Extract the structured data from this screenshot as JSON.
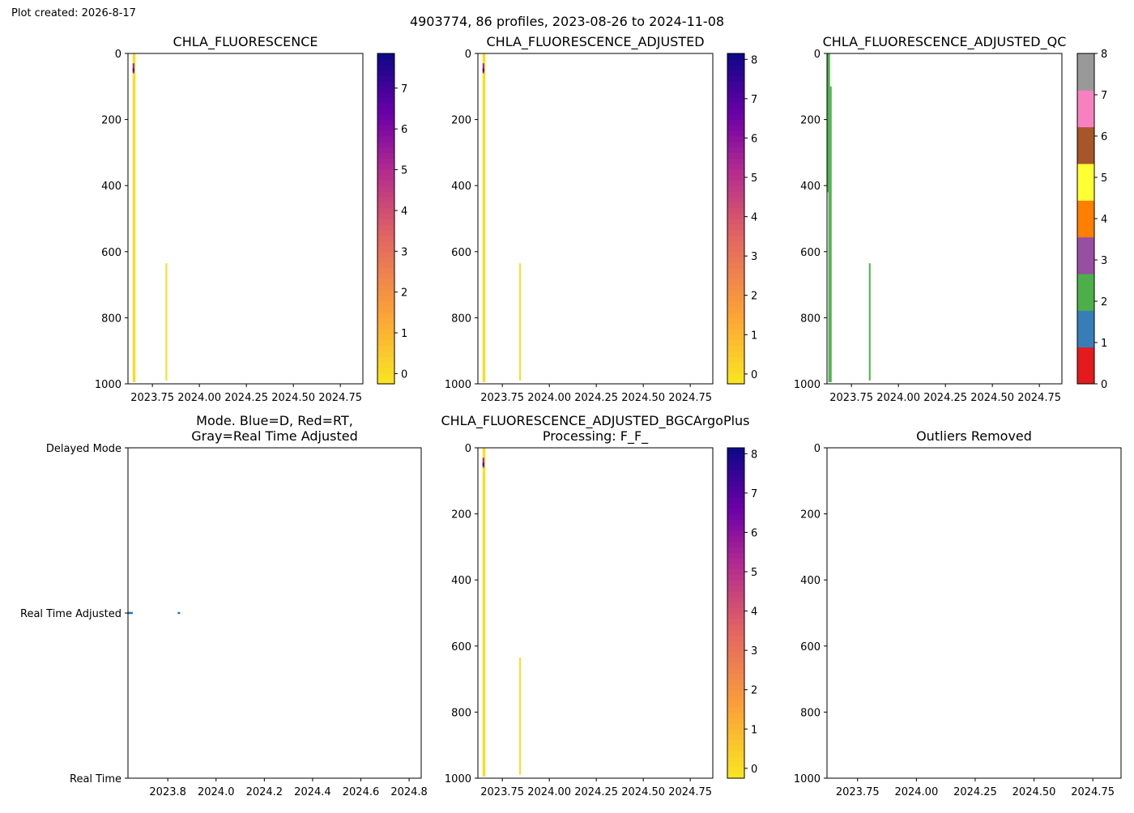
{
  "figure": {
    "created": "Plot created: 2026-8-17",
    "suptitle": "4903774, 86 profiles, 2023-08-26 to 2024-11-08"
  },
  "colors": {
    "colormap_low": "#f9e721",
    "colormap_mid1": "#fca636",
    "colormap_mid2": "#e16462",
    "colormap_mid3": "#b12a90",
    "colormap_mid4": "#6a00a8",
    "colormap_high": "#0d0887",
    "mode_marker": "#1f77b4",
    "qc_green": "#4daf4a"
  },
  "chart_data": [
    {
      "id": "chla",
      "type": "heatmap",
      "title": "CHLA_FLUORESCENCE",
      "xlim": [
        2023.62,
        2024.87
      ],
      "ylim": [
        1000,
        0
      ],
      "xticks": [
        "2023.75",
        "2024.00",
        "2024.25",
        "2024.50",
        "2024.75"
      ],
      "xtick_values": [
        2023.75,
        2024.0,
        2024.25,
        2024.5,
        2024.75
      ],
      "yticks": [
        "0",
        "200",
        "400",
        "600",
        "800",
        "1000"
      ],
      "ytick_values": [
        0,
        200,
        400,
        600,
        800,
        1000
      ],
      "colorbar": {
        "range": [
          -0.25,
          7.85
        ],
        "ticks": [
          "0",
          "1",
          "2",
          "3",
          "4",
          "5",
          "6",
          "7"
        ],
        "tick_values": [
          0,
          1,
          2,
          3,
          4,
          5,
          6,
          7
        ]
      },
      "profiles": [
        {
          "x_start": 2023.645,
          "x_end": 2023.66,
          "depth_top": 0,
          "depth_bottom": 995,
          "value": 0.0
        },
        {
          "x_start": 2023.645,
          "x_end": 2023.652,
          "depth_top": 30,
          "depth_bottom": 60,
          "value": 5.5
        },
        {
          "x_start": 2023.645,
          "x_end": 2023.652,
          "depth_top": 45,
          "depth_bottom": 55,
          "value": 7.0
        },
        {
          "x_start": 2023.82,
          "x_end": 2023.827,
          "depth_top": 635,
          "depth_bottom": 990,
          "value": 0.0
        }
      ]
    },
    {
      "id": "chla_adj",
      "type": "heatmap",
      "title": "CHLA_FLUORESCENCE_ADJUSTED",
      "xlim": [
        2023.62,
        2024.87
      ],
      "ylim": [
        1000,
        0
      ],
      "xticks": [
        "2023.75",
        "2024.00",
        "2024.25",
        "2024.50",
        "2024.75"
      ],
      "xtick_values": [
        2023.75,
        2024.0,
        2024.25,
        2024.5,
        2024.75
      ],
      "yticks": [
        "0",
        "200",
        "400",
        "600",
        "800",
        "1000"
      ],
      "ytick_values": [
        0,
        200,
        400,
        600,
        800,
        1000
      ],
      "colorbar": {
        "range": [
          -0.25,
          8.15
        ],
        "ticks": [
          "0",
          "1",
          "2",
          "3",
          "4",
          "5",
          "6",
          "7",
          "8"
        ],
        "tick_values": [
          0,
          1,
          2,
          3,
          4,
          5,
          6,
          7,
          8
        ]
      },
      "profiles": [
        {
          "x_start": 2023.645,
          "x_end": 2023.66,
          "depth_top": 0,
          "depth_bottom": 995,
          "value": 0.0
        },
        {
          "x_start": 2023.645,
          "x_end": 2023.652,
          "depth_top": 30,
          "depth_bottom": 60,
          "value": 5.5
        },
        {
          "x_start": 2023.645,
          "x_end": 2023.652,
          "depth_top": 45,
          "depth_bottom": 55,
          "value": 7.5
        },
        {
          "x_start": 2023.84,
          "x_end": 2023.847,
          "depth_top": 635,
          "depth_bottom": 990,
          "value": 0.0
        }
      ]
    },
    {
      "id": "chla_qc",
      "type": "heatmap",
      "title": "CHLA_FLUORESCENCE_ADJUSTED_QC",
      "xlim": [
        2023.62,
        2024.87
      ],
      "ylim": [
        1000,
        0
      ],
      "xticks": [
        "2023.75",
        "2024.00",
        "2024.25",
        "2024.50",
        "2024.75"
      ],
      "xtick_values": [
        2023.75,
        2024.0,
        2024.25,
        2024.5,
        2024.75
      ],
      "yticks": [
        "0",
        "200",
        "400",
        "600",
        "800",
        "1000"
      ],
      "ytick_values": [
        0,
        200,
        400,
        600,
        800,
        1000
      ],
      "colorbar": {
        "range": [
          0,
          8
        ],
        "ticks": [
          "0",
          "1",
          "2",
          "3",
          "4",
          "5",
          "6",
          "7",
          "8"
        ],
        "tick_values": [
          0,
          1,
          2,
          3,
          4,
          5,
          6,
          7,
          8
        ],
        "categories": [
          "#e41a1c",
          "#377eb8",
          "#4daf4a",
          "#984ea3",
          "#ff7f00",
          "#ffff33",
          "#a65628",
          "#f781bf",
          "#999999"
        ]
      },
      "profiles": [
        {
          "x_start": 2023.62,
          "x_end": 2023.628,
          "depth_top": 0,
          "depth_bottom": 420,
          "value": 2
        },
        {
          "x_start": 2023.627,
          "x_end": 2023.636,
          "depth_top": 0,
          "depth_bottom": 995,
          "value": 2
        },
        {
          "x_start": 2023.636,
          "x_end": 2023.64,
          "depth_top": 100,
          "depth_bottom": 995,
          "value": 2
        },
        {
          "x_start": 2023.843,
          "x_end": 2023.85,
          "depth_top": 635,
          "depth_bottom": 990,
          "value": 2
        }
      ]
    },
    {
      "id": "mode",
      "type": "scatter",
      "title": "Mode. Blue=D, Red=RT,\nGray=Real Time Adjusted",
      "xlim": [
        2023.635,
        2024.85
      ],
      "xticks": [
        "2023.8",
        "2024.0",
        "2024.2",
        "2024.4",
        "2024.6",
        "2024.8"
      ],
      "xtick_values": [
        2023.8,
        2024.0,
        2024.2,
        2024.4,
        2024.6,
        2024.8
      ],
      "yticks": [
        "Delayed Mode",
        "Real Time Adjusted",
        "Real Time"
      ],
      "ytick_values": [
        2,
        1,
        0
      ],
      "ylim": [
        0,
        2
      ],
      "points": [
        {
          "x": 2023.638,
          "y": 1
        },
        {
          "x": 2023.644,
          "y": 1
        },
        {
          "x": 2023.65,
          "y": 1
        },
        {
          "x": 2023.846,
          "y": 1
        }
      ]
    },
    {
      "id": "chla_bgc",
      "type": "heatmap",
      "title": "CHLA_FLUORESCENCE_ADJUSTED_BGCArgoPlus\nProcessing: F_F_",
      "xlim": [
        2023.62,
        2024.87
      ],
      "ylim": [
        1000,
        0
      ],
      "xticks": [
        "2023.75",
        "2024.00",
        "2024.25",
        "2024.50",
        "2024.75"
      ],
      "xtick_values": [
        2023.75,
        2024.0,
        2024.25,
        2024.5,
        2024.75
      ],
      "yticks": [
        "0",
        "200",
        "400",
        "600",
        "800",
        "1000"
      ],
      "ytick_values": [
        0,
        200,
        400,
        600,
        800,
        1000
      ],
      "colorbar": {
        "range": [
          -0.25,
          8.15
        ],
        "ticks": [
          "0",
          "1",
          "2",
          "3",
          "4",
          "5",
          "6",
          "7",
          "8"
        ],
        "tick_values": [
          0,
          1,
          2,
          3,
          4,
          5,
          6,
          7,
          8
        ]
      },
      "profiles": [
        {
          "x_start": 2023.645,
          "x_end": 2023.66,
          "depth_top": 0,
          "depth_bottom": 995,
          "value": 0.0
        },
        {
          "x_start": 2023.645,
          "x_end": 2023.652,
          "depth_top": 30,
          "depth_bottom": 60,
          "value": 5.5
        },
        {
          "x_start": 2023.645,
          "x_end": 2023.652,
          "depth_top": 45,
          "depth_bottom": 55,
          "value": 7.5
        },
        {
          "x_start": 2023.84,
          "x_end": 2023.847,
          "depth_top": 635,
          "depth_bottom": 990,
          "value": 0.0
        }
      ]
    },
    {
      "id": "outliers",
      "type": "heatmap",
      "title": "Outliers Removed",
      "xlim": [
        2023.62,
        2024.87
      ],
      "ylim": [
        1000,
        0
      ],
      "xticks": [
        "2023.75",
        "2024.00",
        "2024.25",
        "2024.50",
        "2024.75"
      ],
      "xtick_values": [
        2023.75,
        2024.0,
        2024.25,
        2024.5,
        2024.75
      ],
      "yticks": [
        "0",
        "200",
        "400",
        "600",
        "800",
        "1000"
      ],
      "ytick_values": [
        0,
        200,
        400,
        600,
        800,
        1000
      ],
      "profiles": []
    }
  ]
}
